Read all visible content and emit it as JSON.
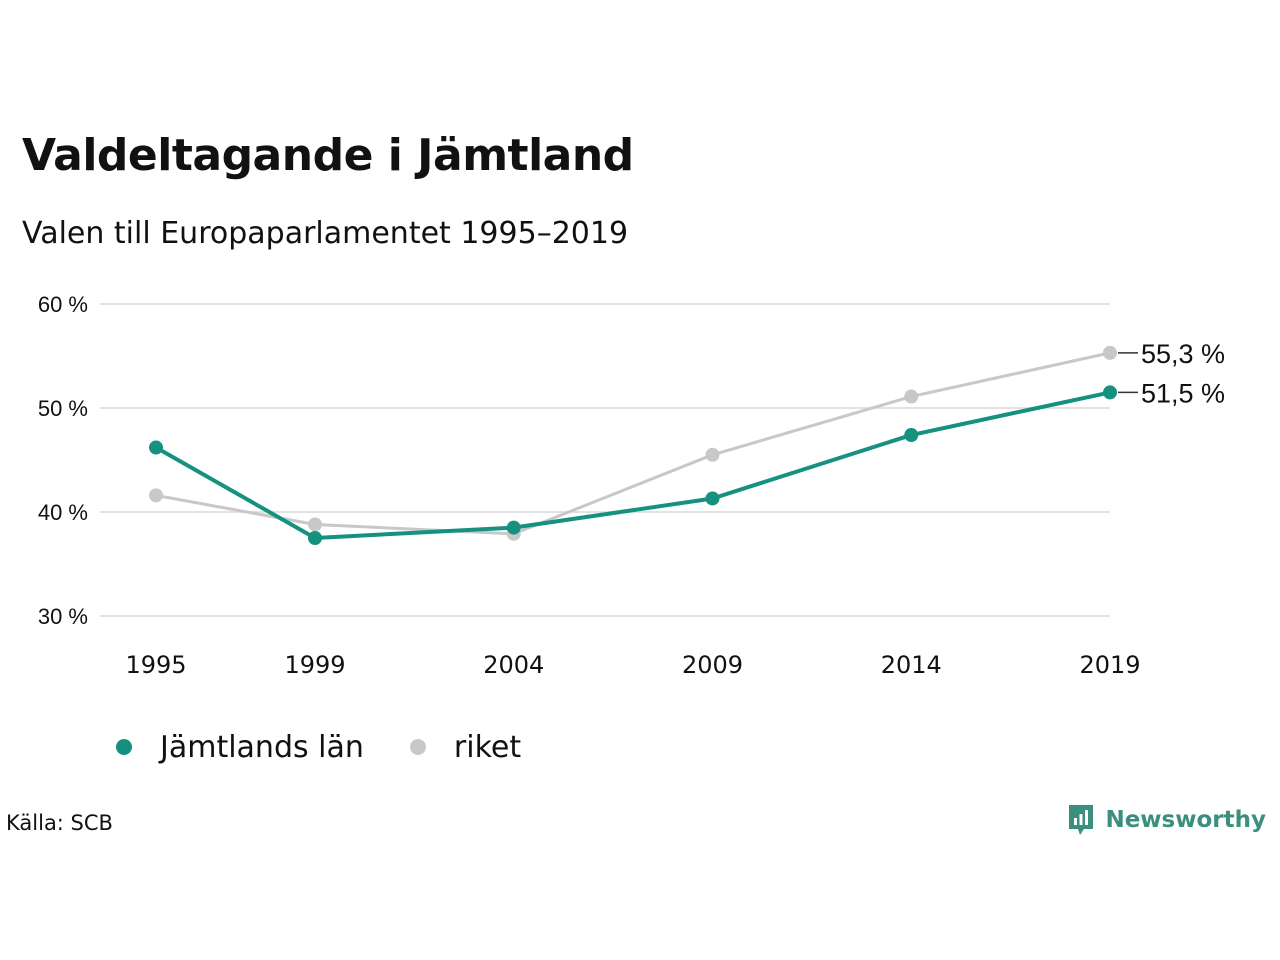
{
  "header": {
    "title": "Valdeltagande i Jämtland",
    "subtitle": "Valen till Europaparlamentet 1995–2019"
  },
  "chart_data": {
    "type": "line",
    "categories": [
      "1995",
      "1999",
      "2004",
      "2009",
      "2014",
      "2019"
    ],
    "x": [
      1995,
      1999,
      2004,
      2009,
      2014,
      2019
    ],
    "series": [
      {
        "name": "riket",
        "color": "#c8c8c8",
        "values": [
          41.6,
          38.8,
          37.9,
          45.5,
          51.1,
          55.3
        ]
      },
      {
        "name": "Jämtlands län",
        "color": "#16907f",
        "values": [
          46.2,
          37.5,
          38.5,
          41.3,
          47.4,
          51.5
        ]
      }
    ],
    "end_labels": [
      "55,3 %",
      "51,5 %"
    ],
    "yticks": [
      30,
      40,
      50,
      60
    ],
    "ytick_labels": [
      "30 %",
      "40 %",
      "50 %",
      "60 %"
    ],
    "ylim": [
      30,
      60
    ],
    "xlim": [
      1995,
      2019
    ],
    "grid": true,
    "legend_position": "bottom-left"
  },
  "legend": [
    {
      "label": "Jämtlands län",
      "color": "#16907f"
    },
    {
      "label": "riket",
      "color": "#c8c8c8"
    }
  ],
  "footer": {
    "source": "Källa: SCB",
    "brand": "Newsworthy",
    "brand_icon": "bar-chart-pin-icon",
    "brand_color": "#3a8f7e"
  }
}
